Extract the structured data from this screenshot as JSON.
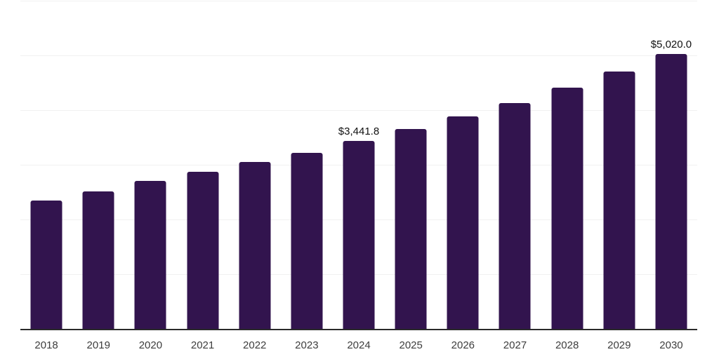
{
  "chart_data": {
    "type": "bar",
    "title": "",
    "xlabel": "",
    "ylabel": "",
    "categories": [
      "2018",
      "2019",
      "2020",
      "2021",
      "2022",
      "2023",
      "2024",
      "2025",
      "2026",
      "2027",
      "2028",
      "2029",
      "2030"
    ],
    "values": [
      2345,
      2510,
      2705,
      2870,
      3050,
      3220,
      3441.8,
      3655,
      3885,
      4130,
      4410,
      4705,
      5020
    ],
    "data_labels": [
      "",
      "",
      "",
      "",
      "",
      "",
      "$3,441.8",
      "",
      "",
      "",
      "",
      "",
      "$5,020.0"
    ],
    "ylim": [
      0,
      6000
    ],
    "gridline_step": 1000,
    "grid": true,
    "legend": false,
    "colors": {
      "bar": "#32144e",
      "gridline": "#f1f1f1",
      "axis_line": "#2a2a2a",
      "tick_label": "#3d3d3d",
      "value_label": "#111111",
      "background": "#ffffff"
    }
  }
}
